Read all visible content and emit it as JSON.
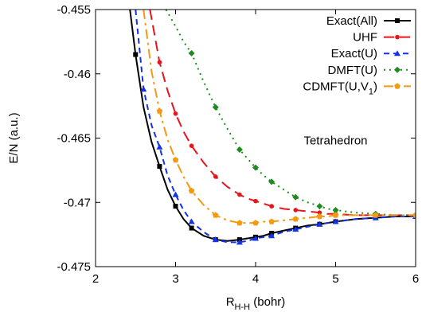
{
  "chart_data": {
    "type": "line",
    "title": "",
    "xlabel": {
      "main": "R",
      "sub": "H-H",
      "suffix": " (bohr)"
    },
    "ylabel": "E/N (a.u.)",
    "xlim": [
      2,
      6
    ],
    "ylim": [
      -0.475,
      -0.455
    ],
    "xticks": [
      2,
      3,
      4,
      5,
      6
    ],
    "xtick_labels": [
      "2",
      "3",
      "4",
      "5",
      "6"
    ],
    "yticks": [
      -0.475,
      -0.47,
      -0.465,
      -0.46,
      -0.455
    ],
    "ytick_labels": [
      "-0.475",
      "-0.47",
      "-0.465",
      "-0.46",
      "-0.455"
    ],
    "grid": false,
    "legend_position": "top-right",
    "annotations": [
      {
        "text": "Tetrahedron",
        "x": 5.0,
        "y": -0.4655
      }
    ],
    "series": [
      {
        "name": "Exact(All)",
        "legend_label": "Exact(All)",
        "color": "#000000",
        "dash": "solid",
        "marker": "square",
        "x": [
          2.5,
          2.8,
          3.0,
          3.2,
          3.5,
          3.8,
          4.0,
          4.2,
          4.5,
          4.8,
          5.0,
          5.5,
          6.0
        ],
        "y": [
          -0.4585,
          -0.4672,
          -0.4703,
          -0.472,
          -0.4729,
          -0.4729,
          -0.4727,
          -0.4724,
          -0.472,
          -0.4717,
          -0.4715,
          -0.4712,
          -0.4711
        ],
        "line_x": [
          2.43,
          2.5,
          2.6,
          2.7,
          2.8,
          2.9,
          3.0,
          3.1,
          3.2,
          3.35,
          3.5,
          3.65,
          3.8,
          3.9,
          4.0,
          4.1,
          4.2,
          4.35,
          4.5,
          4.65,
          4.8,
          4.9,
          5.0,
          5.25,
          5.5,
          5.75,
          6.0
        ],
        "line_y": [
          -0.455,
          -0.4585,
          -0.4626,
          -0.4653,
          -0.4672,
          -0.469,
          -0.4703,
          -0.4713,
          -0.472,
          -0.4726,
          -0.4729,
          -0.473,
          -0.4729,
          -0.4728,
          -0.4727,
          -0.4726,
          -0.4724,
          -0.4722,
          -0.472,
          -0.4718,
          -0.4717,
          -0.4716,
          -0.4715,
          -0.4713,
          -0.4712,
          -0.4711,
          -0.4711
        ]
      },
      {
        "name": "UHF",
        "legend_label": "UHF",
        "color": "#e8141b",
        "dash": "long-dash",
        "marker": "circle",
        "x": [
          2.8,
          3.0,
          3.2,
          3.5,
          3.8,
          4.0,
          4.2,
          4.5,
          4.8,
          5.0,
          5.5,
          6.0
        ],
        "y": [
          -0.4591,
          -0.4631,
          -0.4656,
          -0.468,
          -0.4694,
          -0.4699,
          -0.4703,
          -0.4706,
          -0.4708,
          -0.4709,
          -0.471,
          -0.471
        ],
        "line_x": [
          2.68,
          2.8,
          2.9,
          3.0,
          3.1,
          3.2,
          3.35,
          3.5,
          3.65,
          3.8,
          3.9,
          4.0,
          4.1,
          4.2,
          4.35,
          4.5,
          4.65,
          4.8,
          4.9,
          5.0,
          5.25,
          5.5,
          5.75,
          6.0
        ],
        "line_y": [
          -0.455,
          -0.4591,
          -0.4613,
          -0.4631,
          -0.4645,
          -0.4656,
          -0.4669,
          -0.468,
          -0.4688,
          -0.4694,
          -0.4697,
          -0.4699,
          -0.4701,
          -0.4703,
          -0.4705,
          -0.4706,
          -0.4707,
          -0.4708,
          -0.4709,
          -0.4709,
          -0.471,
          -0.471,
          -0.471,
          -0.471
        ]
      },
      {
        "name": "Exact(U)",
        "legend_label": "Exact(U)",
        "color": "#1432e6",
        "dash": "dash",
        "marker": "triangle",
        "x": [
          2.6,
          2.8,
          3.0,
          3.2,
          3.5,
          3.8,
          4.0,
          4.2,
          4.5,
          4.8,
          5.0,
          5.5,
          6.0
        ],
        "y": [
          -0.4612,
          -0.4657,
          -0.4694,
          -0.4715,
          -0.4729,
          -0.4731,
          -0.4728,
          -0.4726,
          -0.4721,
          -0.4717,
          -0.4715,
          -0.4712,
          -0.4711
        ],
        "line_x": [
          2.5,
          2.6,
          2.7,
          2.8,
          2.9,
          3.0,
          3.1,
          3.2,
          3.35,
          3.5,
          3.65,
          3.8,
          3.9,
          4.0,
          4.1,
          4.2,
          4.35,
          4.5,
          4.65,
          4.8,
          4.9,
          5.0,
          5.25,
          5.5,
          5.75,
          6.0
        ],
        "line_y": [
          -0.455,
          -0.4612,
          -0.464,
          -0.4657,
          -0.4679,
          -0.4694,
          -0.4706,
          -0.4715,
          -0.4723,
          -0.4729,
          -0.4731,
          -0.4731,
          -0.473,
          -0.4728,
          -0.4727,
          -0.4726,
          -0.4723,
          -0.4721,
          -0.4719,
          -0.4717,
          -0.4716,
          -0.4715,
          -0.4713,
          -0.4712,
          -0.4711,
          -0.4711
        ]
      },
      {
        "name": "DMFT(U)",
        "legend_label": "DMFT(U)",
        "color": "#1f8a1f",
        "dash": "dot",
        "marker": "diamond",
        "x": [
          3.2,
          3.5,
          3.8,
          4.0,
          4.2,
          4.5,
          4.8,
          5.0,
          5.5,
          6.0
        ],
        "y": [
          -0.4584,
          -0.4626,
          -0.4659,
          -0.4673,
          -0.4684,
          -0.4696,
          -0.4703,
          -0.4706,
          -0.4709,
          -0.471
        ],
        "line_x": [
          2.88,
          3.0,
          3.1,
          3.2,
          3.35,
          3.5,
          3.65,
          3.8,
          3.9,
          4.0,
          4.1,
          4.2,
          4.35,
          4.5,
          4.65,
          4.8,
          4.9,
          5.0,
          5.25,
          5.5,
          5.75,
          6.0
        ],
        "line_y": [
          -0.455,
          -0.4563,
          -0.4575,
          -0.4584,
          -0.4606,
          -0.4626,
          -0.4643,
          -0.4659,
          -0.4666,
          -0.4673,
          -0.4679,
          -0.4684,
          -0.469,
          -0.4696,
          -0.47,
          -0.4703,
          -0.4705,
          -0.4706,
          -0.4708,
          -0.4709,
          -0.471,
          -0.471
        ]
      },
      {
        "name": "CDMFT(U,V1)",
        "legend_label": {
          "main": "CDMFT(U,V",
          "sub": "1",
          "suffix": ")"
        },
        "color": "#f39a12",
        "dash": "dash-dot",
        "marker": "pentagon",
        "x": [
          2.8,
          3.0,
          3.2,
          3.5,
          3.8,
          4.0,
          4.2,
          4.5,
          4.8,
          5.0,
          5.5,
          6.0
        ],
        "y": [
          -0.4629,
          -0.4667,
          -0.4691,
          -0.471,
          -0.4716,
          -0.4716,
          -0.4715,
          -0.4713,
          -0.4711,
          -0.471,
          -0.471,
          -0.471
        ],
        "line_x": [
          2.6,
          2.7,
          2.8,
          2.9,
          3.0,
          3.1,
          3.2,
          3.35,
          3.5,
          3.65,
          3.8,
          3.9,
          4.0,
          4.1,
          4.2,
          4.35,
          4.5,
          4.65,
          4.8,
          4.9,
          5.0,
          5.25,
          5.5,
          5.75,
          6.0
        ],
        "line_y": [
          -0.455,
          -0.4598,
          -0.4629,
          -0.4651,
          -0.4667,
          -0.468,
          -0.4691,
          -0.4702,
          -0.471,
          -0.4714,
          -0.4716,
          -0.4716,
          -0.4716,
          -0.4715,
          -0.4715,
          -0.4714,
          -0.4713,
          -0.4712,
          -0.4711,
          -0.4711,
          -0.471,
          -0.471,
          -0.471,
          -0.471,
          -0.471
        ]
      }
    ]
  }
}
